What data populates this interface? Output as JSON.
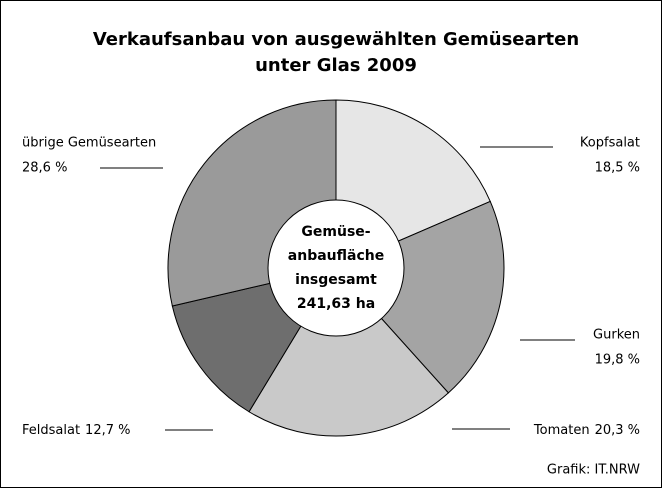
{
  "chart_data": {
    "type": "pie",
    "title": [
      "Verkaufsanbau von ausgewählten Gemüsearten",
      "unter Glas 2009"
    ],
    "categories": [
      "Kopfsalat",
      "Gurken",
      "Tomaten",
      "Feldsalat",
      "übrige Gemüsearten"
    ],
    "values": [
      18.5,
      19.8,
      20.3,
      12.7,
      28.6
    ],
    "value_labels": [
      "18,5 %",
      "19,8 %",
      "20,3 %",
      "12,7 %",
      "28,6 %"
    ],
    "colors": [
      "#e6e6e6",
      "#a4a4a4",
      "#c9c9c9",
      "#6e6e6e",
      "#9a9a9a"
    ],
    "center_text": [
      "Gemüse-",
      "anbaufläche",
      "insgesamt",
      "241,63 ha"
    ],
    "source": "Grafik: IT.NRW"
  }
}
